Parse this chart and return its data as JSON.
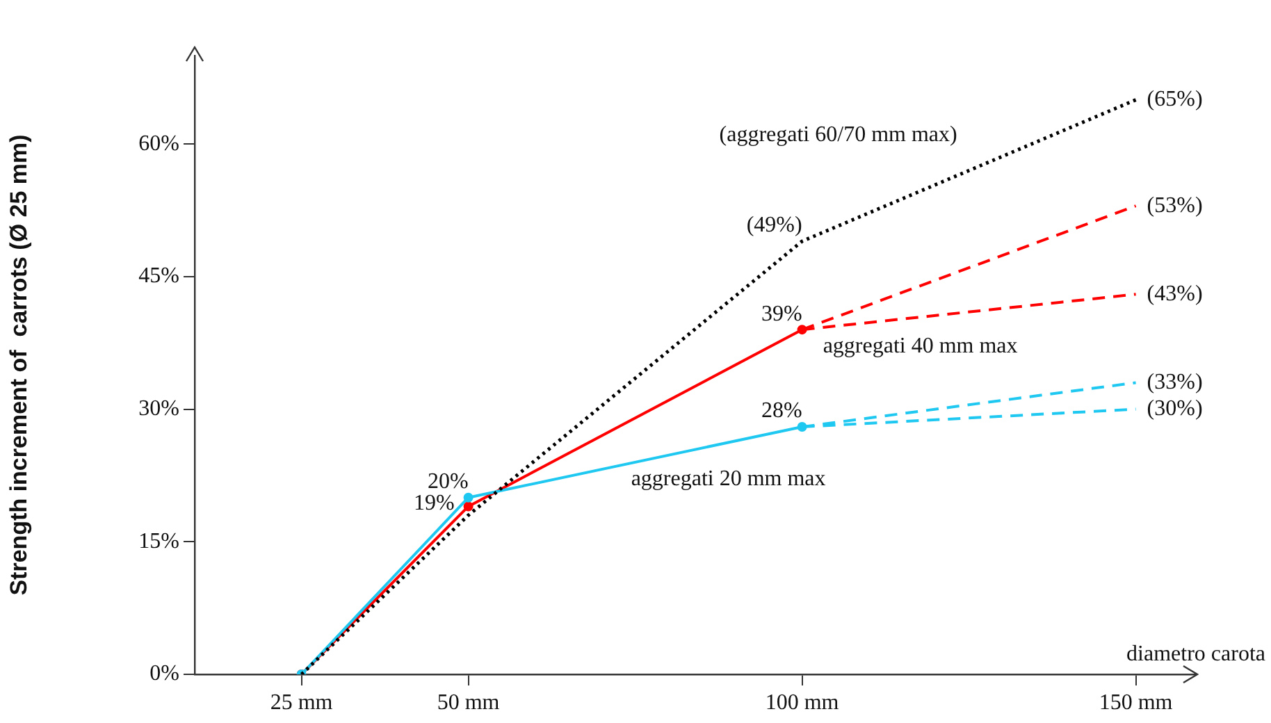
{
  "chart_data": {
    "type": "line",
    "xlabel": "diametro carota",
    "ylabel": "Strength increment of  carrots (Ø 25 mm)",
    "xlim": [
      9,
      159
    ],
    "xticks": [
      {
        "value": 25,
        "label": "25 mm"
      },
      {
        "value": 50,
        "label": "50 mm"
      },
      {
        "value": 100,
        "label": "100 mm"
      },
      {
        "value": 150,
        "label": "150 mm"
      }
    ],
    "ylim": [
      0,
      70
    ],
    "yticks": [
      {
        "value": 0,
        "label": "0%"
      },
      {
        "value": 15,
        "label": "15%"
      },
      {
        "value": 30,
        "label": "30%"
      },
      {
        "value": 45,
        "label": "45%"
      },
      {
        "value": 60,
        "label": "60%"
      }
    ],
    "grid": false,
    "legend": false,
    "series": [
      {
        "name": "(aggregati 60/70 mm max)",
        "color": "#000000",
        "x": [
          25,
          50,
          100,
          150
        ],
        "values": [
          0,
          18,
          49,
          65
        ],
        "value_labels": [
          null,
          null,
          "(49%)",
          "(65%)"
        ],
        "line_style": "dotted",
        "marker": "none"
      },
      {
        "name": "aggregati 20 mm max",
        "color": "#1ec8f0",
        "x": [
          25,
          50,
          100
        ],
        "values": [
          0,
          20,
          28
        ],
        "value_labels": [
          null,
          "20%",
          "28%"
        ],
        "line_style": "solid",
        "marker": "circle"
      },
      {
        "color": "#1ec8f0",
        "x": [
          100,
          150
        ],
        "values": [
          28,
          33
        ],
        "value_labels": [
          null,
          "(33%)"
        ],
        "line_style": "dashed",
        "marker": "none"
      },
      {
        "color": "#1ec8f0",
        "x": [
          100,
          150
        ],
        "values": [
          28,
          30
        ],
        "value_labels": [
          null,
          "(30%)"
        ],
        "line_style": "dashed",
        "marker": "none"
      },
      {
        "name": "aggregati 40 mm max",
        "color": "#ff0000",
        "x": [
          25,
          50,
          100
        ],
        "values": [
          0,
          19,
          39
        ],
        "value_labels": [
          null,
          "19%",
          "39%"
        ],
        "line_style": "solid",
        "marker": "circle"
      },
      {
        "color": "#ff0000",
        "x": [
          100,
          150
        ],
        "values": [
          39,
          53
        ],
        "value_labels": [
          null,
          "(53%)"
        ],
        "line_style": "dashed",
        "marker": "none"
      },
      {
        "color": "#ff0000",
        "x": [
          100,
          150
        ],
        "values": [
          39,
          43
        ],
        "value_labels": [
          null,
          "(43%)"
        ],
        "line_style": "dashed",
        "marker": "none"
      }
    ]
  }
}
